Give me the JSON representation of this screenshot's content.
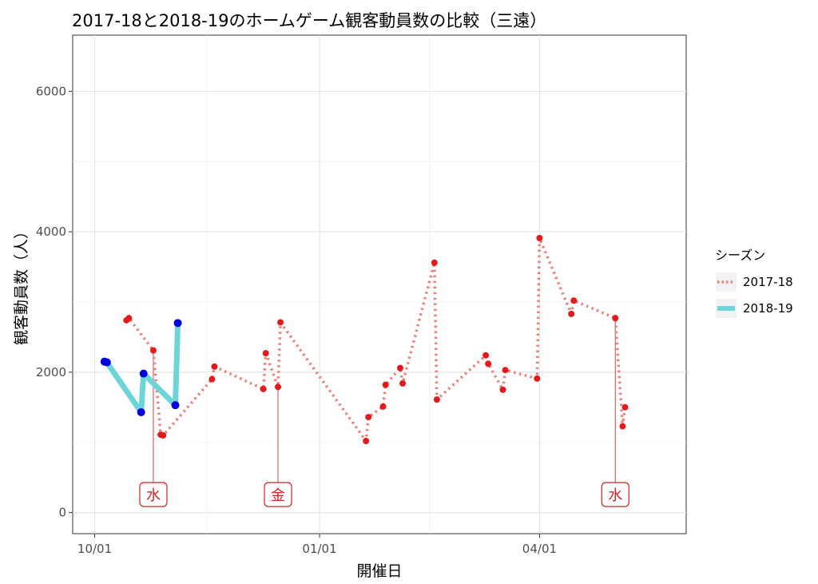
{
  "chart_data": {
    "type": "line",
    "title": "2017-18と2018-19のホームゲーム観客動員数の比較（三遠）",
    "xlabel": "開催日",
    "ylabel": "観客動員数（人）",
    "x_unit": "month/day (season aligned, Oct–May)",
    "xlim": [
      "09/22",
      "05/31"
    ],
    "ylim": [
      -300,
      6800
    ],
    "x_ticks": [
      {
        "date": "10/01",
        "label": "10/01"
      },
      {
        "date": "01/01",
        "label": "01/01"
      },
      {
        "date": "04/01",
        "label": "04/01"
      }
    ],
    "y_ticks": [
      0,
      2000,
      4000,
      6000
    ],
    "grid": true,
    "legend": {
      "title": "シーズン",
      "position": "right"
    },
    "series": [
      {
        "name": "2017-18",
        "color": "#e4827b",
        "point_color": "#e31a1c",
        "line_style": "dotted",
        "points": [
          {
            "x": "10/14",
            "y": 2740
          },
          {
            "x": "10/15",
            "y": 2770
          },
          {
            "x": "10/25",
            "y": 2310
          },
          {
            "x": "10/28",
            "y": 1110
          },
          {
            "x": "10/29",
            "y": 1100
          },
          {
            "x": "11/18",
            "y": 1900
          },
          {
            "x": "11/19",
            "y": 2080
          },
          {
            "x": "12/09",
            "y": 1760
          },
          {
            "x": "12/10",
            "y": 2270
          },
          {
            "x": "12/15",
            "y": 1790
          },
          {
            "x": "12/16",
            "y": 2710
          },
          {
            "x": "01/20",
            "y": 1020
          },
          {
            "x": "01/21",
            "y": 1360
          },
          {
            "x": "01/27",
            "y": 1510
          },
          {
            "x": "01/28",
            "y": 1820
          },
          {
            "x": "02/03",
            "y": 2060
          },
          {
            "x": "02/04",
            "y": 1840
          },
          {
            "x": "02/17",
            "y": 3560
          },
          {
            "x": "02/18",
            "y": 1610
          },
          {
            "x": "03/10",
            "y": 2240
          },
          {
            "x": "03/11",
            "y": 2120
          },
          {
            "x": "03/17",
            "y": 1750
          },
          {
            "x": "03/18",
            "y": 2030
          },
          {
            "x": "03/31",
            "y": 1910
          },
          {
            "x": "04/01",
            "y": 3910
          },
          {
            "x": "04/14",
            "y": 2830
          },
          {
            "x": "04/15",
            "y": 3020
          },
          {
            "x": "05/02",
            "y": 2770
          },
          {
            "x": "05/05",
            "y": 1230
          },
          {
            "x": "05/06",
            "y": 1500
          }
        ]
      },
      {
        "name": "2018-19",
        "color": "#6dd5d8",
        "point_color": "#0000dd",
        "line_style": "solid",
        "points": [
          {
            "x": "10/05",
            "y": 2150
          },
          {
            "x": "10/06",
            "y": 2140
          },
          {
            "x": "10/20",
            "y": 1430
          },
          {
            "x": "10/21",
            "y": 1980
          },
          {
            "x": "11/03",
            "y": 1530
          },
          {
            "x": "11/04",
            "y": 2700
          }
        ]
      }
    ],
    "annotations": [
      {
        "x": "10/25",
        "y_from": 2310,
        "label": "水"
      },
      {
        "x": "12/15",
        "y_from": 1790,
        "label": "金"
      },
      {
        "x": "05/02",
        "y_from": 2770,
        "label": "水"
      }
    ]
  }
}
